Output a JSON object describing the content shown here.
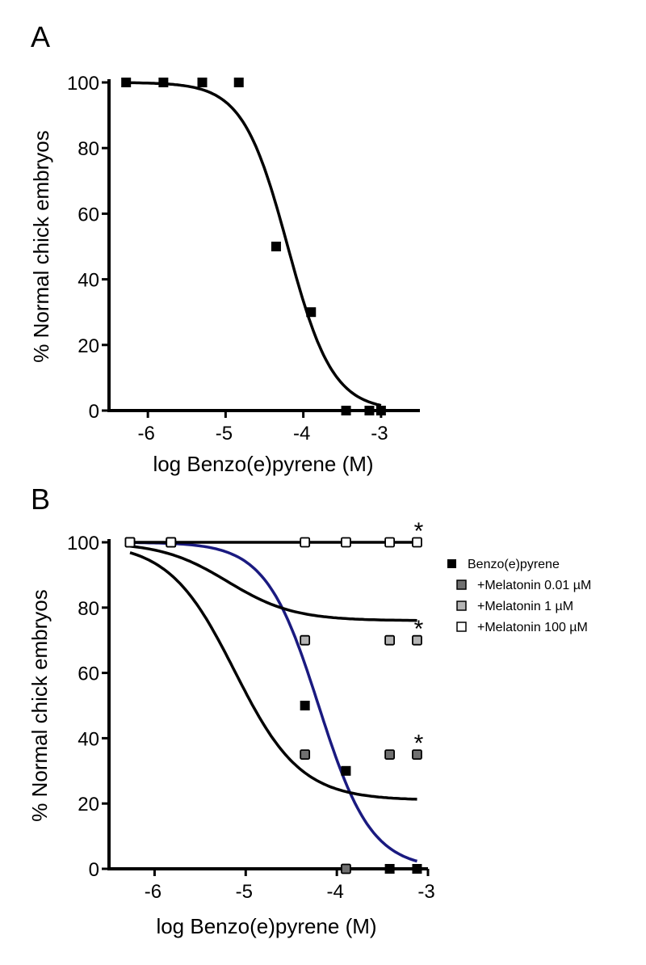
{
  "chart_data": [
    {
      "type": "scatter",
      "panel": "A",
      "xlabel": "log Benzo(e)pyrene (M)",
      "ylabel": "% Normal chick embryos",
      "xlim": [
        -6.5,
        -2.5
      ],
      "ylim": [
        0,
        100
      ],
      "xticks": [
        -6,
        -5,
        -4,
        -3
      ],
      "xtick_labels": [
        "-6",
        "-5",
        "-4",
        "-3"
      ],
      "yticks": [
        0,
        20,
        40,
        60,
        80,
        100
      ],
      "ytick_labels": [
        "0",
        "20",
        "40",
        "60",
        "80",
        "100"
      ],
      "series": [
        {
          "marker": "filled-square",
          "color": "#000000",
          "points": [
            {
              "x": -6.28,
              "y": 100
            },
            {
              "x": -5.8,
              "y": 100
            },
            {
              "x": -5.3,
              "y": 100
            },
            {
              "x": -4.83,
              "y": 100
            },
            {
              "x": -4.35,
              "y": 50
            },
            {
              "x": -3.9,
              "y": 30
            },
            {
              "x": -3.45,
              "y": 0
            },
            {
              "x": -3.15,
              "y": 0
            },
            {
              "x": -3.0,
              "y": 0
            }
          ],
          "fit": {
            "top": 100,
            "bottom": 0,
            "logIC50": -4.2,
            "hill": 1.5,
            "from": -6.28,
            "to": -3.0,
            "color": "#000000"
          }
        }
      ]
    },
    {
      "type": "scatter",
      "panel": "B",
      "xlabel": "log Benzo(e)pyrene (M)",
      "ylabel": "% Normal chick embryos",
      "xlim": [
        -6.5,
        -3.0
      ],
      "ylim": [
        0,
        100
      ],
      "xticks": [
        -6,
        -5,
        -4,
        -3
      ],
      "xtick_labels": [
        "-6",
        "-5",
        "-4",
        "-3"
      ],
      "yticks": [
        0,
        20,
        40,
        60,
        80,
        100
      ],
      "ytick_labels": [
        "0",
        "20",
        "40",
        "60",
        "80",
        "100"
      ],
      "legend_position": "right",
      "series": [
        {
          "name": "Benzo(e)pyrene",
          "marker": "filled-square",
          "fill": "#000000",
          "points": [
            {
              "x": -6.27,
              "y": 100
            },
            {
              "x": -5.82,
              "y": 100
            },
            {
              "x": -4.35,
              "y": 50
            },
            {
              "x": -3.9,
              "y": 30
            },
            {
              "x": -3.42,
              "y": 0
            },
            {
              "x": -3.12,
              "y": 0
            }
          ],
          "fit": {
            "top": 100,
            "bottom": 0,
            "logIC50": -4.2,
            "hill": 1.5,
            "from": -6.27,
            "to": -3.12,
            "color": "#1a1a80"
          }
        },
        {
          "name": "+Melatonin 0.01 µM",
          "marker": "outlined-square",
          "fill": "#707070",
          "points": [
            {
              "x": -6.27,
              "y": 100
            },
            {
              "x": -5.82,
              "y": 100
            },
            {
              "x": -4.35,
              "y": 35
            },
            {
              "x": -3.9,
              "y": 0
            },
            {
              "x": -3.42,
              "y": 35
            },
            {
              "x": -3.12,
              "y": 35
            }
          ],
          "fit": {
            "top": 100,
            "bottom": 21,
            "logIC50": -5.12,
            "hill": 1.2,
            "from": -6.27,
            "to": -3.12,
            "color": "#000000"
          },
          "annotation": "*"
        },
        {
          "name": "+Melatonin 1 µM",
          "marker": "outlined-square",
          "fill": "#b4b4b4",
          "points": [
            {
              "x": -6.27,
              "y": 100
            },
            {
              "x": -5.82,
              "y": 100
            },
            {
              "x": -4.35,
              "y": 70
            },
            {
              "x": -3.42,
              "y": 70
            },
            {
              "x": -3.12,
              "y": 70
            }
          ],
          "fit": {
            "top": 100,
            "bottom": 76,
            "logIC50": -5.2,
            "hill": 1.2,
            "from": -6.27,
            "to": -3.12,
            "color": "#000000"
          },
          "annotation": "*"
        },
        {
          "name": "+Melatonin 100 µM",
          "marker": "outlined-square",
          "fill": "#ffffff",
          "points": [
            {
              "x": -6.27,
              "y": 100
            },
            {
              "x": -5.82,
              "y": 100
            },
            {
              "x": -4.35,
              "y": 100
            },
            {
              "x": -3.9,
              "y": 100
            },
            {
              "x": -3.42,
              "y": 100
            },
            {
              "x": -3.12,
              "y": 100
            }
          ],
          "fit": {
            "top": 100,
            "bottom": 100,
            "logIC50": -4.5,
            "hill": 1.0,
            "from": -6.27,
            "to": -3.12,
            "color": "#000000"
          },
          "annotation": "*"
        }
      ]
    }
  ]
}
